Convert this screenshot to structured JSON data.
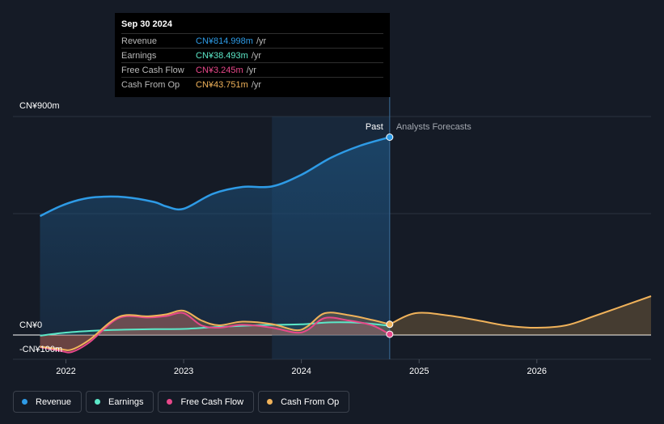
{
  "tooltip": {
    "date": "Sep 30 2024",
    "rows": [
      {
        "label": "Revenue",
        "value": "CN¥814.998m",
        "unit": "/yr",
        "color": "#2e9be6"
      },
      {
        "label": "Earnings",
        "value": "CN¥38.493m",
        "unit": "/yr",
        "color": "#5ce8c8"
      },
      {
        "label": "Free Cash Flow",
        "value": "CN¥3.245m",
        "unit": "/yr",
        "color": "#e8488a"
      },
      {
        "label": "Cash From Op",
        "value": "CN¥43.751m",
        "unit": "/yr",
        "color": "#f0b25a"
      }
    ]
  },
  "period_labels": {
    "past": "Past",
    "forecast": "Analysts Forecasts"
  },
  "legend": [
    {
      "label": "Revenue",
      "color": "#2e9be6"
    },
    {
      "label": "Earnings",
      "color": "#5ce8c8"
    },
    {
      "label": "Free Cash Flow",
      "color": "#e8488a"
    },
    {
      "label": "Cash From Op",
      "color": "#f0b25a"
    }
  ],
  "chart_data": {
    "type": "line",
    "currency": "CN¥",
    "y_tick_labels": [
      "CN¥900m",
      "CN¥0",
      "-CN¥100m"
    ],
    "x_tick_labels": [
      "2022",
      "2023",
      "2024",
      "2025",
      "2026"
    ],
    "ylim": [
      -100,
      900
    ],
    "xlim": [
      2021.55,
      2026.97
    ],
    "past_end": 2024.75,
    "highlight_start": 2023.75,
    "grid": true,
    "series": [
      {
        "name": "Revenue",
        "color": "#2e9be6",
        "x": [
          2021.78,
          2021.95,
          2022.1,
          2022.25,
          2022.5,
          2022.75,
          2022.85,
          2023.0,
          2023.25,
          2023.5,
          2023.75,
          2024.0,
          2024.25,
          2024.5,
          2024.75
        ],
        "y": [
          490,
          530,
          555,
          568,
          568,
          548,
          530,
          520,
          582,
          610,
          612,
          660,
          730,
          780,
          815
        ]
      },
      {
        "name": "Earnings",
        "color": "#5ce8c8",
        "x": [
          2021.78,
          2022.0,
          2022.25,
          2022.5,
          2022.75,
          2023.0,
          2023.25,
          2023.5,
          2023.75,
          2024.0,
          2024.25,
          2024.5,
          2024.75
        ],
        "y": [
          -3,
          10,
          18,
          22,
          24,
          25,
          32,
          38,
          42,
          44,
          52,
          50,
          38
        ]
      },
      {
        "name": "Free Cash Flow",
        "color": "#e8488a",
        "x": [
          2021.78,
          2021.95,
          2022.05,
          2022.2,
          2022.45,
          2022.7,
          2022.85,
          2023.0,
          2023.15,
          2023.3,
          2023.5,
          2023.75,
          2023.95,
          2024.05,
          2024.2,
          2024.4,
          2024.6,
          2024.75
        ],
        "y": [
          -50,
          -65,
          -70,
          -30,
          70,
          72,
          78,
          90,
          40,
          30,
          42,
          30,
          10,
          20,
          70,
          60,
          40,
          3
        ]
      },
      {
        "name": "Cash From Op",
        "color": "#f0b25a",
        "x": [
          2021.78,
          2021.95,
          2022.05,
          2022.2,
          2022.45,
          2022.7,
          2022.85,
          2023.0,
          2023.15,
          2023.3,
          2023.5,
          2023.75,
          2023.95,
          2024.05,
          2024.2,
          2024.4,
          2024.6,
          2024.75
        ],
        "y": [
          -48,
          -58,
          -60,
          -20,
          75,
          77,
          85,
          100,
          60,
          40,
          55,
          45,
          20,
          35,
          90,
          82,
          62,
          44
        ]
      },
      {
        "name": "Cash From Op (forecast)",
        "color": "#f0b25a",
        "x": [
          2024.75,
          2024.97,
          2025.25,
          2025.5,
          2025.75,
          2026.0,
          2026.25,
          2026.5,
          2026.97
        ],
        "y": [
          44,
          90,
          80,
          60,
          38,
          30,
          40,
          80,
          160
        ]
      }
    ]
  }
}
